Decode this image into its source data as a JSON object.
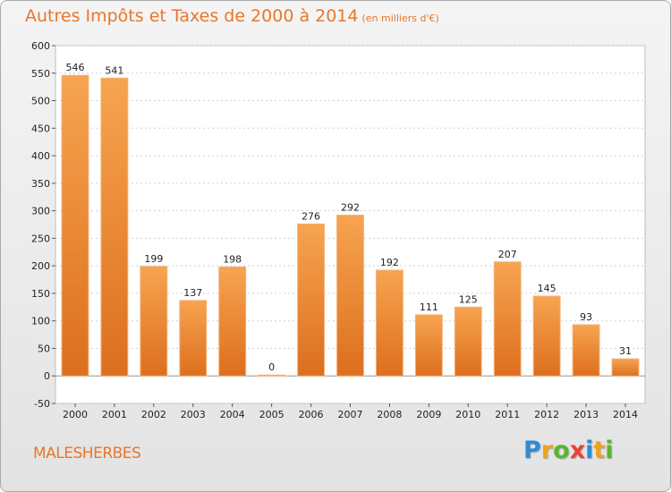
{
  "header": {
    "title": "Autres Impôts et Taxes de 2000 à 2014",
    "unit": "(en milliers d'€)"
  },
  "footer": {
    "commune": "MALESHERBES",
    "logo": [
      "P",
      "r",
      "o",
      "x",
      "i",
      "t",
      "i"
    ]
  },
  "colors": {
    "bar_light": "#f7a450",
    "bar_dark": "#dc6f1e",
    "accent": "#e8762c",
    "grid": "#d0d0d0"
  },
  "chart_data": {
    "type": "bar",
    "title": "Autres Impôts et Taxes de 2000 à 2014",
    "subtitle": "(en milliers d'€)",
    "categories": [
      "2000",
      "2001",
      "2002",
      "2003",
      "2004",
      "2005",
      "2006",
      "2007",
      "2008",
      "2009",
      "2010",
      "2011",
      "2012",
      "2013",
      "2014"
    ],
    "values": [
      546,
      541,
      199,
      137,
      198,
      0,
      276,
      292,
      192,
      111,
      125,
      207,
      145,
      93,
      31
    ],
    "data_labels": [
      "546",
      "541",
      "199",
      "137",
      "198",
      "0",
      "276",
      "292",
      "192",
      "111",
      "125",
      "207",
      "145",
      "93",
      "31"
    ],
    "yticks": [
      -50,
      0,
      50,
      100,
      150,
      200,
      250,
      300,
      350,
      400,
      450,
      500,
      550,
      600
    ],
    "ylim": [
      -50,
      600
    ],
    "grid": true,
    "legend": "none"
  }
}
